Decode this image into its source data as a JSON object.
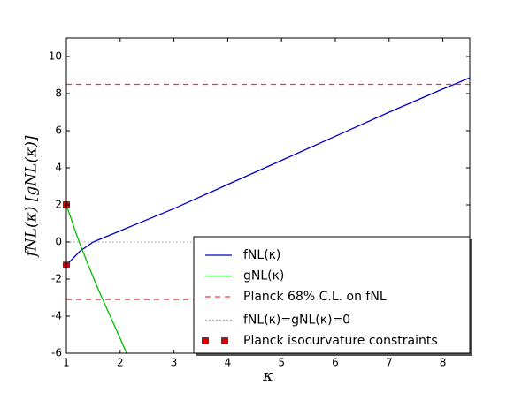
{
  "chart_data": {
    "type": "line",
    "xlabel": "κ",
    "ylabel": "fNL(κ) [gNL(κ)]",
    "xlim": [
      1,
      8.5
    ],
    "ylim": [
      -6,
      11
    ],
    "xticks": [
      1,
      2,
      3,
      4,
      5,
      6,
      7,
      8
    ],
    "yticks": [
      -6,
      -4,
      -2,
      0,
      2,
      4,
      6,
      8,
      10
    ],
    "legend": "lower right",
    "series": [
      {
        "name": "fNL(κ)",
        "color": "#0000cc",
        "style": "solid",
        "x": [
          1,
          1.25,
          1.5,
          2,
          3,
          4,
          5,
          6,
          7,
          8,
          8.5
        ],
        "values": [
          -1.25,
          -0.5,
          0.0,
          0.6,
          1.8,
          3.1,
          4.4,
          5.7,
          7.0,
          8.25,
          8.85
        ]
      },
      {
        "name": "gNL(κ)",
        "color": "#00bb00",
        "style": "solid",
        "x": [
          1,
          1.2,
          1.4,
          1.6,
          1.8,
          2.0,
          2.12
        ],
        "values": [
          2,
          0.3,
          -1.2,
          -2.6,
          -3.9,
          -5.2,
          -6
        ]
      },
      {
        "name": "Planck 68% C.L. on fNL",
        "color": "#ff3333",
        "style": "hline-dashed",
        "values": [
          8.5,
          -3.1
        ]
      },
      {
        "name": "fNL(κ)=gNL(κ)=0",
        "color": "#999999",
        "style": "hline-dotted",
        "values": [
          0
        ]
      },
      {
        "name": "Planck isocurvature constraints",
        "color": "#dd0000",
        "style": "square",
        "x": [
          1,
          1
        ],
        "values": [
          2,
          -1.25
        ]
      }
    ]
  }
}
